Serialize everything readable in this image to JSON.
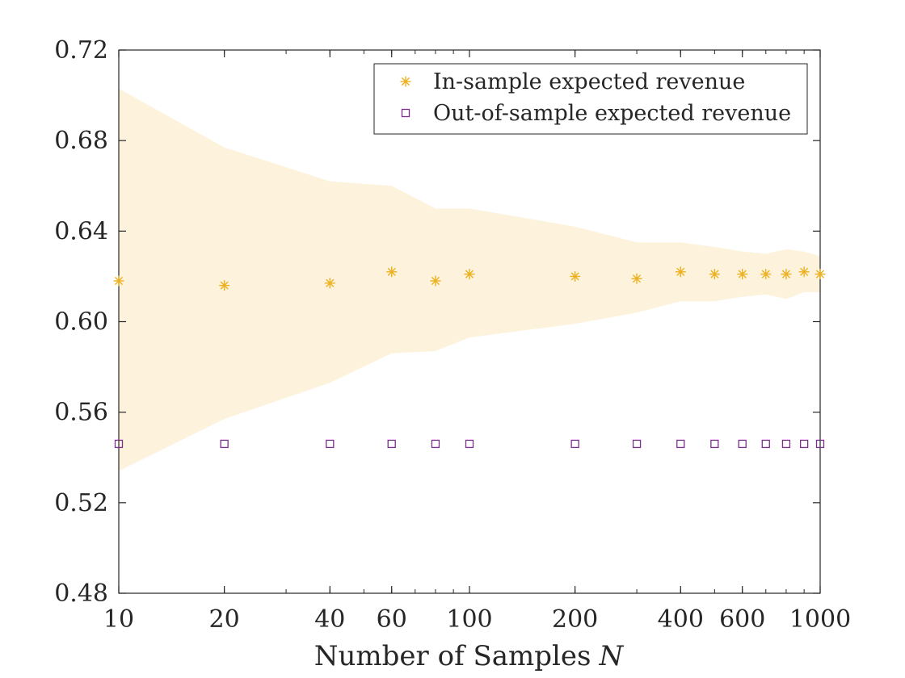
{
  "chart_data": {
    "type": "scatter",
    "xscale": "log",
    "xlabel": "Number of Samples",
    "xlabel_var": "N",
    "ylabel": "",
    "xlim": [
      10,
      1000
    ],
    "ylim": [
      0.48,
      0.72
    ],
    "grid": false,
    "legend_position": "top-right",
    "x_ticks": [
      10,
      20,
      40,
      60,
      100,
      200,
      400,
      600,
      1000
    ],
    "x_tick_labels": [
      "10",
      "20",
      "40",
      "60",
      "100",
      "200",
      "400",
      "600",
      "1000"
    ],
    "y_ticks": [
      0.48,
      0.52,
      0.56,
      0.6,
      0.64,
      0.68,
      0.72
    ],
    "y_tick_labels": [
      "0.48",
      "0.52",
      "0.56",
      "0.60",
      "0.64",
      "0.68",
      "0.72"
    ],
    "x": [
      10,
      20,
      40,
      60,
      80,
      100,
      200,
      300,
      400,
      500,
      600,
      700,
      800,
      900,
      1000
    ],
    "series": [
      {
        "name": "In-sample expected revenue",
        "marker": "asterisk",
        "color": "#EDB120",
        "values": [
          0.618,
          0.616,
          0.617,
          0.622,
          0.618,
          0.621,
          0.62,
          0.619,
          0.622,
          0.621,
          0.621,
          0.621,
          0.621,
          0.622,
          0.621
        ]
      },
      {
        "name": "Out-of-sample expected revenue",
        "marker": "square",
        "color": "#7E2F8E",
        "values": [
          0.546,
          0.546,
          0.546,
          0.546,
          0.546,
          0.546,
          0.546,
          0.546,
          0.546,
          0.546,
          0.546,
          0.546,
          0.546,
          0.546,
          0.546
        ]
      }
    ],
    "band": {
      "color": "#FDF3DD",
      "x": [
        10,
        20,
        40,
        60,
        80,
        100,
        200,
        300,
        400,
        500,
        600,
        700,
        800,
        900,
        1000
      ],
      "upper": [
        0.703,
        0.677,
        0.662,
        0.66,
        0.65,
        0.65,
        0.642,
        0.635,
        0.635,
        0.633,
        0.631,
        0.63,
        0.632,
        0.631,
        0.629
      ],
      "lower": [
        0.534,
        0.557,
        0.573,
        0.586,
        0.587,
        0.593,
        0.599,
        0.604,
        0.609,
        0.609,
        0.611,
        0.612,
        0.61,
        0.613,
        0.613
      ]
    }
  }
}
